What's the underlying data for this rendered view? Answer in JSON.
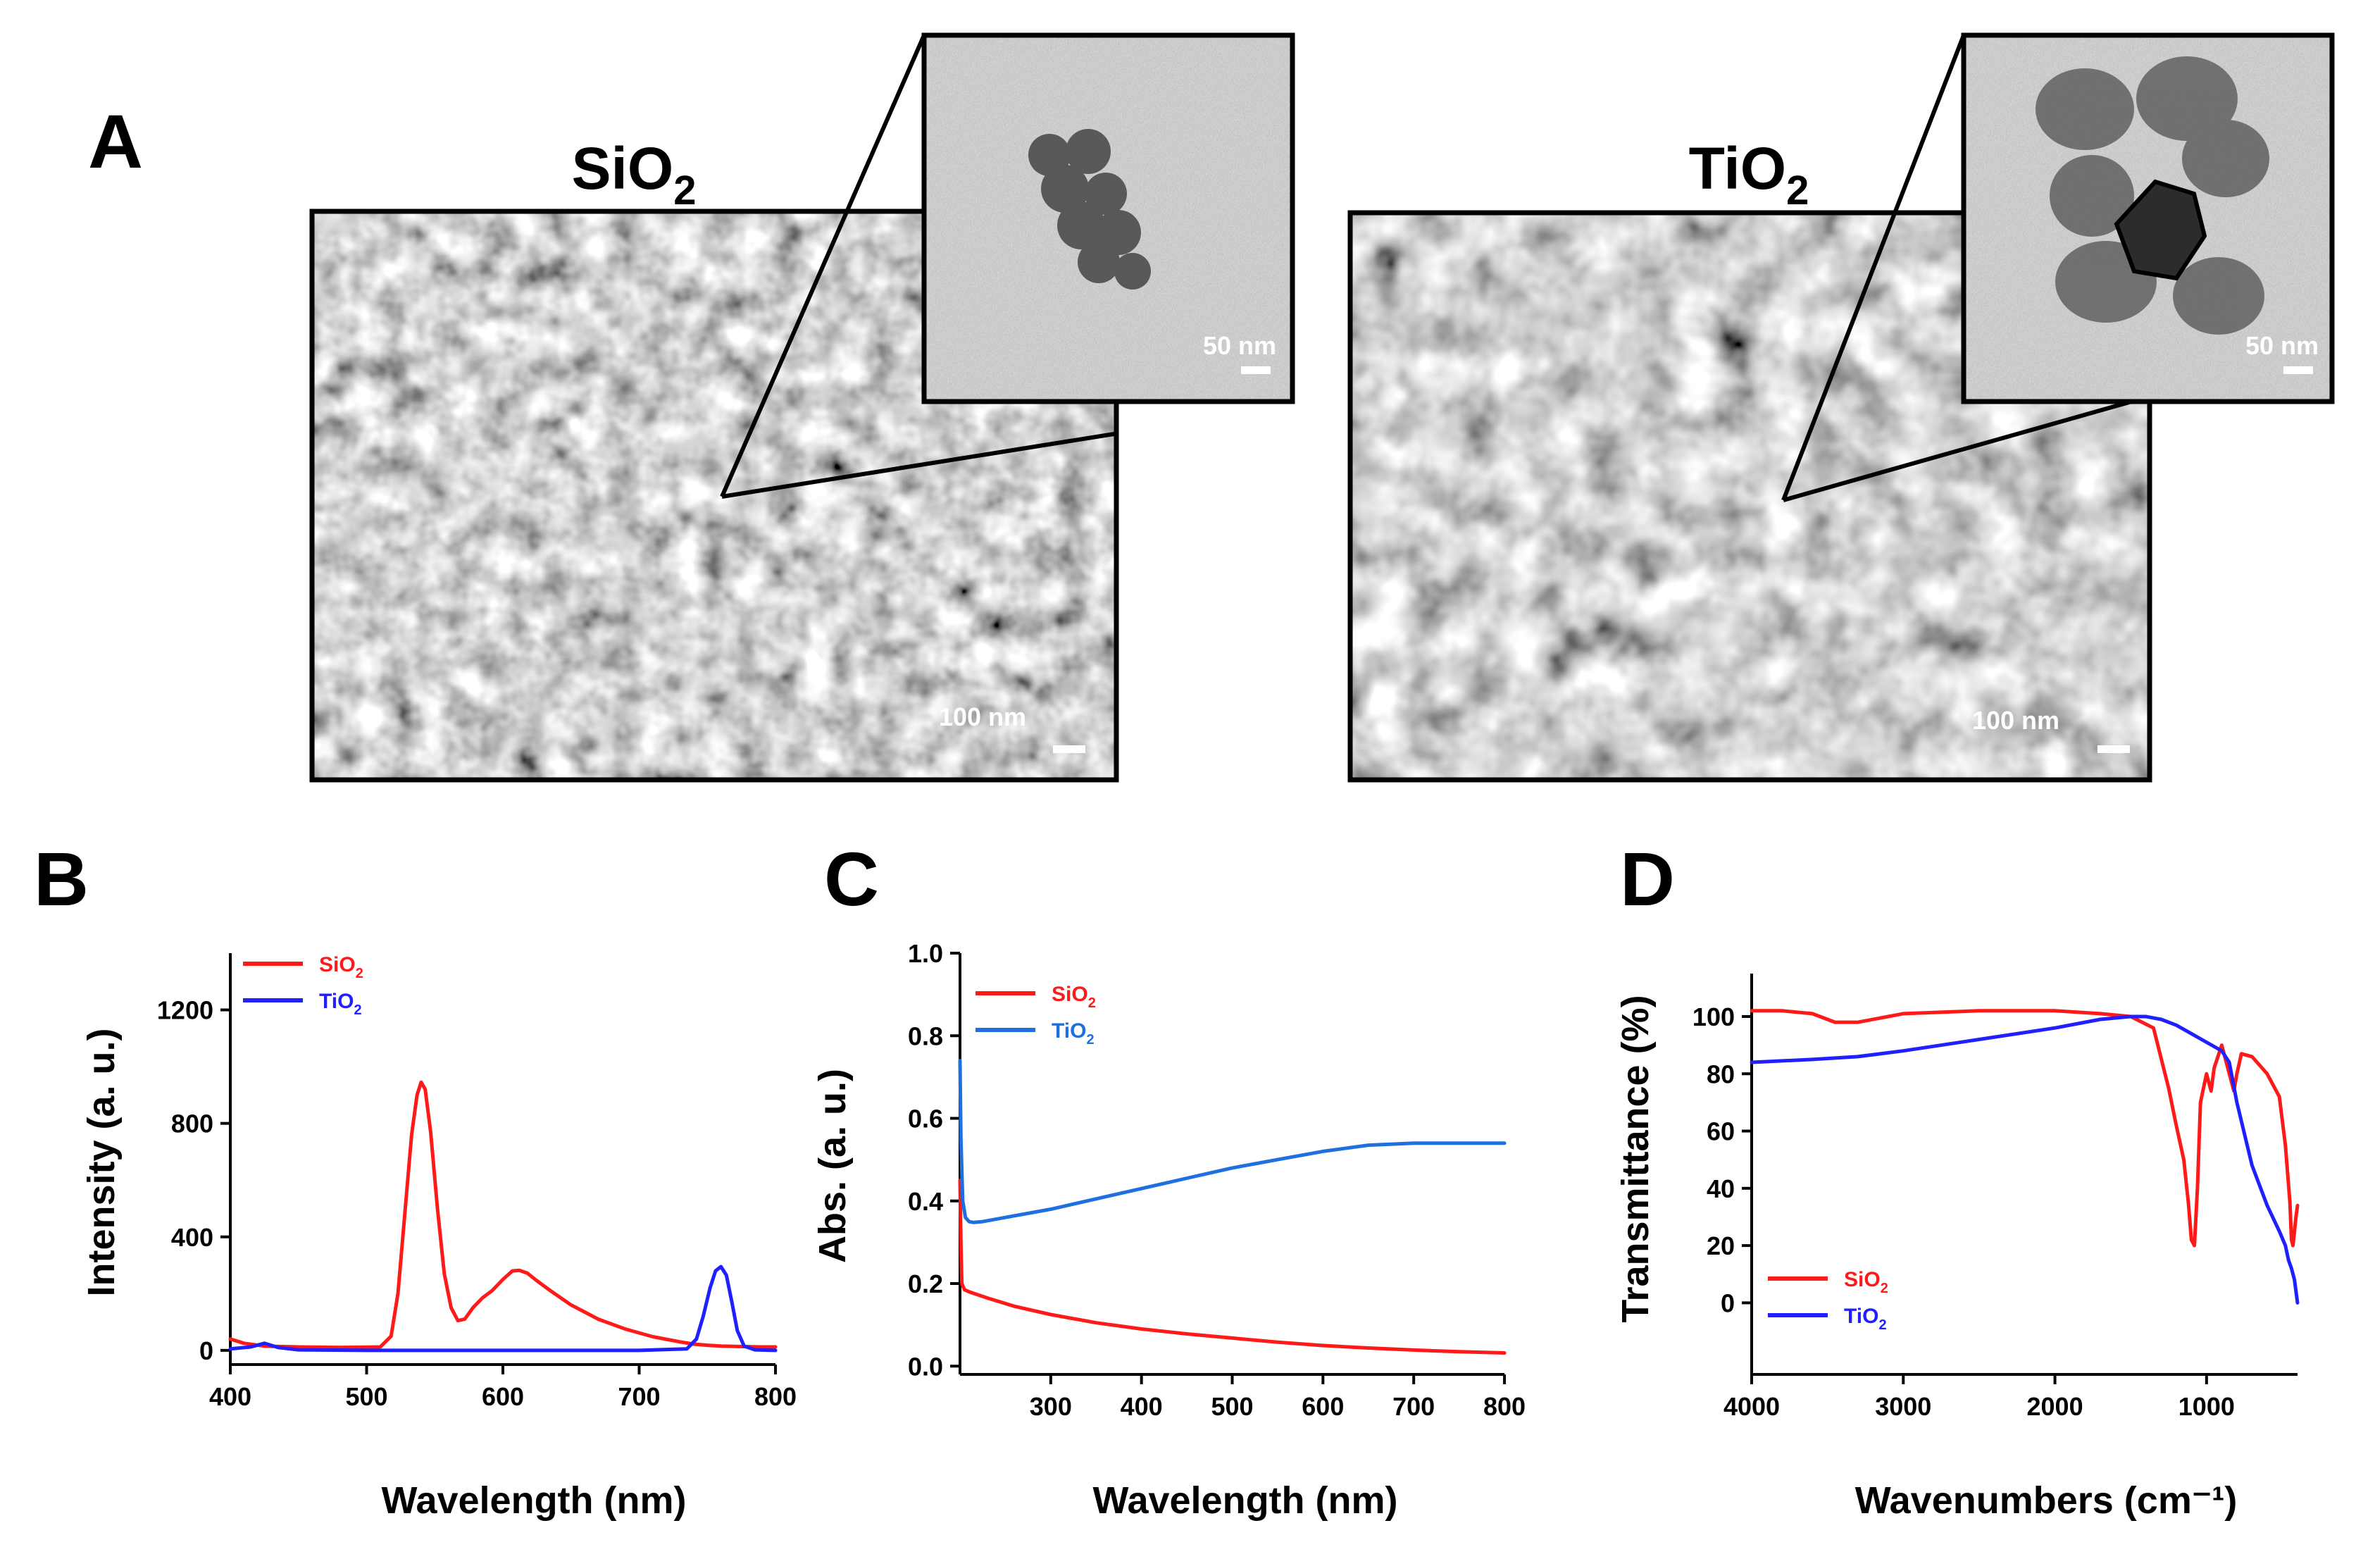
{
  "panel_labels": {
    "a": "A",
    "b": "B",
    "c": "C",
    "d": "D"
  },
  "micrographs": [
    {
      "material": "SiO2",
      "sem_scale": "100 nm",
      "tem_scale": "50 nm"
    },
    {
      "material": "TiO2",
      "sem_scale": "100 nm",
      "tem_scale": "50 nm"
    }
  ],
  "colors": {
    "sio2": "#ff1a1a",
    "tio2": "#1f1fff",
    "tio2_abs": "#1e6fe0"
  },
  "chart_data": [
    {
      "id": "B",
      "type": "line",
      "xlabel": "Wavelength (nm)",
      "ylabel": "Intensity (a. u.)",
      "xlim": [
        400,
        800
      ],
      "ylim": [
        -50,
        1400
      ],
      "xticks": [
        400,
        500,
        600,
        700,
        800
      ],
      "yticks": [
        0,
        400,
        800,
        1200
      ],
      "legend": "top-left",
      "series": [
        {
          "name": "SiO2",
          "color": "#ff1a1a",
          "x": [
            400,
            410,
            425,
            450,
            480,
            510,
            518,
            523,
            528,
            533,
            537,
            540,
            543,
            547,
            552,
            557,
            562,
            567,
            572,
            578,
            585,
            592,
            600,
            607,
            612,
            618,
            625,
            635,
            650,
            670,
            690,
            710,
            730,
            740,
            750,
            760,
            770,
            780,
            790,
            800
          ],
          "y": [
            40,
            25,
            15,
            12,
            10,
            12,
            50,
            200,
            480,
            760,
            900,
            945,
            920,
            770,
            500,
            270,
            150,
            105,
            110,
            150,
            185,
            210,
            250,
            280,
            282,
            272,
            245,
            210,
            160,
            110,
            75,
            48,
            30,
            22,
            18,
            15,
            14,
            13,
            12,
            12
          ]
        },
        {
          "name": "TiO2",
          "color": "#1f1fff",
          "x": [
            400,
            415,
            425,
            435,
            450,
            500,
            600,
            700,
            735,
            742,
            747,
            752,
            756,
            760,
            764,
            768,
            772,
            777,
            785,
            800
          ],
          "y": [
            5,
            12,
            25,
            10,
            2,
            0,
            0,
            0,
            5,
            40,
            120,
            220,
            280,
            295,
            265,
            170,
            70,
            15,
            2,
            0
          ]
        }
      ]
    },
    {
      "id": "C",
      "type": "line",
      "xlabel": "Wavelength (nm)",
      "ylabel": "Abs. (a. u.)",
      "xlim": [
        200,
        800
      ],
      "ylim": [
        -0.02,
        1.0
      ],
      "xticks": [
        300,
        400,
        500,
        600,
        700,
        800
      ],
      "yticks": [
        0.0,
        0.2,
        0.4,
        0.6,
        0.8,
        1.0
      ],
      "ytick_labels": [
        "0.0",
        "0.2",
        "0.4",
        "0.6",
        "0.8",
        "1.0"
      ],
      "legend": "top-left",
      "series": [
        {
          "name": "SiO2",
          "color": "#ff1a1a",
          "x": [
            200,
            201,
            202,
            205,
            210,
            230,
            260,
            300,
            350,
            400,
            450,
            500,
            550,
            600,
            650,
            700,
            750,
            800
          ],
          "y": [
            0.45,
            0.3,
            0.2,
            0.185,
            0.18,
            0.165,
            0.145,
            0.125,
            0.105,
            0.09,
            0.078,
            0.068,
            0.058,
            0.05,
            0.044,
            0.039,
            0.035,
            0.032
          ]
        },
        {
          "name": "TiO2",
          "color": "#1e6fe0",
          "x": [
            200,
            201,
            203,
            206,
            210,
            215,
            225,
            250,
            300,
            350,
            400,
            450,
            500,
            550,
            600,
            650,
            700,
            750,
            800
          ],
          "y": [
            0.74,
            0.55,
            0.4,
            0.36,
            0.35,
            0.348,
            0.35,
            0.36,
            0.38,
            0.405,
            0.43,
            0.455,
            0.48,
            0.5,
            0.52,
            0.535,
            0.54,
            0.54,
            0.54
          ]
        }
      ]
    },
    {
      "id": "D",
      "type": "line",
      "xlabel": "Wavenumbers (cm⁻¹)",
      "ylabel": "Transmittance (%)",
      "xlim": [
        4000,
        400
      ],
      "ylim": [
        -25,
        115
      ],
      "xticks": [
        4000,
        3000,
        2000,
        1000
      ],
      "yticks": [
        0,
        20,
        40,
        60,
        80,
        100
      ],
      "legend": "bottom-left",
      "series": [
        {
          "name": "SiO2",
          "color": "#ff1a1a",
          "x": [
            4000,
            3800,
            3600,
            3450,
            3300,
            3000,
            2500,
            2000,
            1700,
            1500,
            1350,
            1250,
            1200,
            1150,
            1120,
            1100,
            1080,
            1060,
            1040,
            1000,
            970,
            950,
            900,
            860,
            820,
            800,
            770,
            700,
            600,
            520,
            480,
            450,
            440,
            430,
            420,
            410,
            400
          ],
          "y": [
            102,
            102,
            101,
            98,
            98,
            101,
            102,
            102,
            101,
            100,
            96,
            75,
            62,
            50,
            35,
            22,
            20,
            40,
            70,
            80,
            74,
            82,
            90,
            82,
            74,
            80,
            87,
            86,
            80,
            72,
            55,
            35,
            22,
            20,
            25,
            30,
            34
          ]
        },
        {
          "name": "TiO2",
          "color": "#1f1fff",
          "x": [
            4000,
            3600,
            3300,
            3000,
            2500,
            2000,
            1700,
            1500,
            1400,
            1300,
            1200,
            1100,
            1000,
            900,
            850,
            800,
            700,
            600,
            520,
            480,
            460,
            440,
            420,
            410,
            400
          ],
          "y": [
            84,
            85,
            86,
            88,
            92,
            96,
            99,
            100,
            100,
            99,
            97,
            94,
            91,
            88,
            84,
            70,
            48,
            34,
            25,
            20,
            15,
            12,
            8,
            4,
            0
          ]
        }
      ]
    }
  ]
}
